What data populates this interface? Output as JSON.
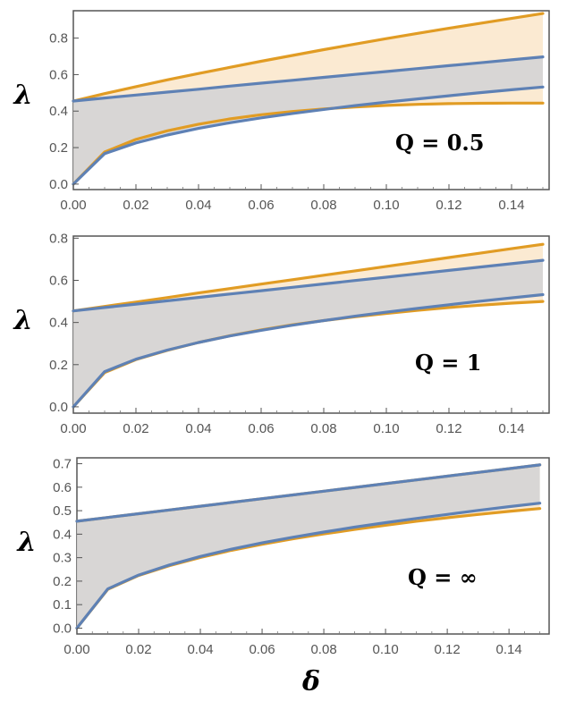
{
  "figure": {
    "xlabel": "δ",
    "ylabel": "λ"
  },
  "chart_data": [
    {
      "type": "line",
      "annotation": "Q = 0.5",
      "xlabel": "",
      "ylabel": "λ",
      "xlim": [
        0,
        0.152
      ],
      "ylim": [
        -0.03,
        0.95
      ],
      "xticks": [
        0.0,
        0.02,
        0.04,
        0.06,
        0.08,
        0.1,
        0.12,
        0.14
      ],
      "xtick_labels": [
        "0.00",
        "0.02",
        "0.04",
        "0.06",
        "0.08",
        "0.10",
        "0.12",
        "0.14"
      ],
      "yticks": [
        0.0,
        0.2,
        0.4,
        0.6,
        0.8
      ],
      "ytick_labels": [
        "0.0",
        "0.2",
        "0.4",
        "0.6",
        "0.8"
      ],
      "x": [
        0.0,
        0.01,
        0.02,
        0.03,
        0.04,
        0.05,
        0.06,
        0.07,
        0.08,
        0.09,
        0.1,
        0.11,
        0.12,
        0.13,
        0.14,
        0.15
      ],
      "series": [
        {
          "name": "orange upper",
          "color": "#e19c24",
          "values": [
            0.455,
            0.496,
            0.534,
            0.571,
            0.606,
            0.64,
            0.673,
            0.705,
            0.737,
            0.767,
            0.797,
            0.826,
            0.854,
            0.881,
            0.908,
            0.935
          ]
        },
        {
          "name": "orange lower",
          "color": "#e19c24",
          "values": [
            0.0,
            0.176,
            0.245,
            0.292,
            0.328,
            0.357,
            0.38,
            0.398,
            0.412,
            0.423,
            0.431,
            0.437,
            0.441,
            0.443,
            0.444,
            0.444
          ]
        },
        {
          "name": "blue upper",
          "color": "#5e81b5",
          "values": [
            0.455,
            0.472,
            0.488,
            0.504,
            0.52,
            0.537,
            0.553,
            0.569,
            0.585,
            0.601,
            0.617,
            0.633,
            0.649,
            0.665,
            0.681,
            0.697
          ]
        },
        {
          "name": "blue lower",
          "color": "#5e81b5",
          "values": [
            0.0,
            0.167,
            0.226,
            0.269,
            0.305,
            0.336,
            0.363,
            0.387,
            0.409,
            0.43,
            0.449,
            0.467,
            0.484,
            0.501,
            0.517,
            0.532
          ]
        }
      ]
    },
    {
      "type": "line",
      "annotation": "Q = 1",
      "xlabel": "",
      "ylabel": "λ",
      "xlim": [
        0,
        0.152
      ],
      "ylim": [
        -0.03,
        0.81
      ],
      "xticks": [
        0.0,
        0.02,
        0.04,
        0.06,
        0.08,
        0.1,
        0.12,
        0.14
      ],
      "xtick_labels": [
        "0.00",
        "0.02",
        "0.04",
        "0.06",
        "0.08",
        "0.10",
        "0.12",
        "0.14"
      ],
      "yticks": [
        0.0,
        0.2,
        0.4,
        0.6,
        0.8
      ],
      "ytick_labels": [
        "0.0",
        "0.2",
        "0.4",
        "0.6",
        "0.8"
      ],
      "x": [
        0.0,
        0.01,
        0.02,
        0.03,
        0.04,
        0.05,
        0.06,
        0.07,
        0.08,
        0.09,
        0.1,
        0.11,
        0.12,
        0.13,
        0.14,
        0.15
      ],
      "series": [
        {
          "name": "orange upper",
          "color": "#e19c24",
          "values": [
            0.455,
            0.476,
            0.497,
            0.518,
            0.54,
            0.561,
            0.582,
            0.603,
            0.624,
            0.645,
            0.666,
            0.687,
            0.708,
            0.729,
            0.75,
            0.771
          ]
        },
        {
          "name": "orange lower",
          "color": "#e19c24",
          "values": [
            0.0,
            0.162,
            0.224,
            0.268,
            0.305,
            0.337,
            0.365,
            0.389,
            0.409,
            0.427,
            0.443,
            0.458,
            0.471,
            0.482,
            0.492,
            0.5
          ]
        },
        {
          "name": "blue upper",
          "color": "#5e81b5",
          "values": [
            0.455,
            0.471,
            0.487,
            0.503,
            0.519,
            0.535,
            0.551,
            0.567,
            0.583,
            0.599,
            0.615,
            0.631,
            0.647,
            0.663,
            0.679,
            0.695
          ]
        },
        {
          "name": "blue lower",
          "color": "#5e81b5",
          "values": [
            0.0,
            0.167,
            0.226,
            0.269,
            0.305,
            0.336,
            0.363,
            0.387,
            0.409,
            0.43,
            0.449,
            0.467,
            0.484,
            0.501,
            0.517,
            0.532
          ]
        }
      ]
    },
    {
      "type": "line",
      "annotation": "Q = ∞",
      "xlabel": "δ",
      "ylabel": "λ",
      "xlim": [
        0,
        0.153
      ],
      "ylim": [
        -0.025,
        0.725
      ],
      "xticks": [
        0.0,
        0.02,
        0.04,
        0.06,
        0.08,
        0.1,
        0.12,
        0.14
      ],
      "xtick_labels": [
        "0.00",
        "0.02",
        "0.04",
        "0.06",
        "0.08",
        "0.10",
        "0.12",
        "0.14"
      ],
      "yticks": [
        0.0,
        0.1,
        0.2,
        0.3,
        0.4,
        0.5,
        0.6,
        0.7
      ],
      "ytick_labels": [
        "0.0",
        "0.1",
        "0.2",
        "0.3",
        "0.4",
        "0.5",
        "0.6",
        "0.7"
      ],
      "x": [
        0.0,
        0.01,
        0.02,
        0.03,
        0.04,
        0.05,
        0.06,
        0.07,
        0.08,
        0.09,
        0.1,
        0.11,
        0.12,
        0.13,
        0.14,
        0.15
      ],
      "series": [
        {
          "name": "orange upper",
          "color": "#e19c24",
          "values": [
            0.455,
            0.471,
            0.487,
            0.503,
            0.519,
            0.535,
            0.551,
            0.567,
            0.583,
            0.599,
            0.615,
            0.631,
            0.647,
            0.663,
            0.679,
            0.695
          ]
        },
        {
          "name": "orange lower",
          "color": "#e19c24",
          "values": [
            0.0,
            0.165,
            0.224,
            0.266,
            0.301,
            0.331,
            0.357,
            0.38,
            0.401,
            0.42,
            0.438,
            0.455,
            0.47,
            0.484,
            0.497,
            0.509
          ]
        },
        {
          "name": "blue upper",
          "color": "#5e81b5",
          "values": [
            0.455,
            0.471,
            0.487,
            0.503,
            0.519,
            0.535,
            0.551,
            0.567,
            0.583,
            0.599,
            0.615,
            0.631,
            0.647,
            0.663,
            0.679,
            0.695
          ]
        },
        {
          "name": "blue lower",
          "color": "#5e81b5",
          "values": [
            0.0,
            0.167,
            0.226,
            0.269,
            0.305,
            0.336,
            0.363,
            0.387,
            0.409,
            0.43,
            0.449,
            0.467,
            0.484,
            0.501,
            0.517,
            0.532
          ]
        }
      ]
    }
  ]
}
